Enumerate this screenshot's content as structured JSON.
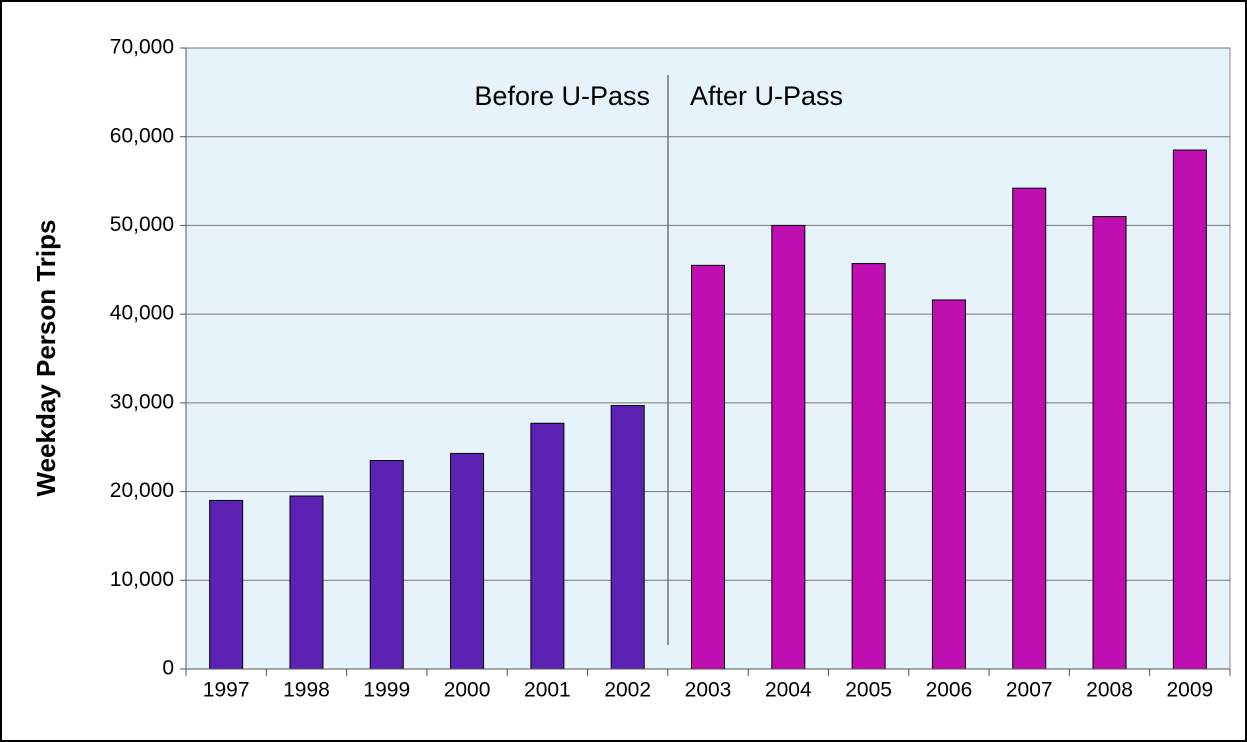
{
  "chart_data": {
    "type": "bar",
    "y_label": "Weekday Person Trips",
    "annotations": [
      "Before U-Pass",
      "After U-Pass"
    ],
    "categories": [
      "1997",
      "1998",
      "1999",
      "2000",
      "2001",
      "2002",
      "2003",
      "2004",
      "2005",
      "2006",
      "2007",
      "2008",
      "2009"
    ],
    "values": [
      19000,
      19500,
      23500,
      24300,
      27700,
      29700,
      45500,
      50000,
      45700,
      41600,
      54200,
      51000,
      58500
    ],
    "colors": [
      "#5b22b4",
      "#5b22b4",
      "#5b22b4",
      "#5b22b4",
      "#5b22b4",
      "#5b22b4",
      "#bf0fb0",
      "#bf0fb0",
      "#bf0fb0",
      "#bf0fb0",
      "#bf0fb0",
      "#bf0fb0",
      "#bf0fb0"
    ],
    "ylim": [
      0,
      70000
    ],
    "yticks": [
      0,
      {
        "value": 10000,
        "label": "10,000"
      },
      {
        "value": 20000,
        "label": "20,000"
      },
      {
        "value": 30000,
        "label": "30,000"
      },
      {
        "value": 40000,
        "label": "40,000"
      },
      {
        "value": 50000,
        "label": "50,000"
      },
      {
        "value": 60000,
        "label": "60,000"
      },
      {
        "value": 70000,
        "label": "70,000"
      }
    ],
    "grid": true
  }
}
